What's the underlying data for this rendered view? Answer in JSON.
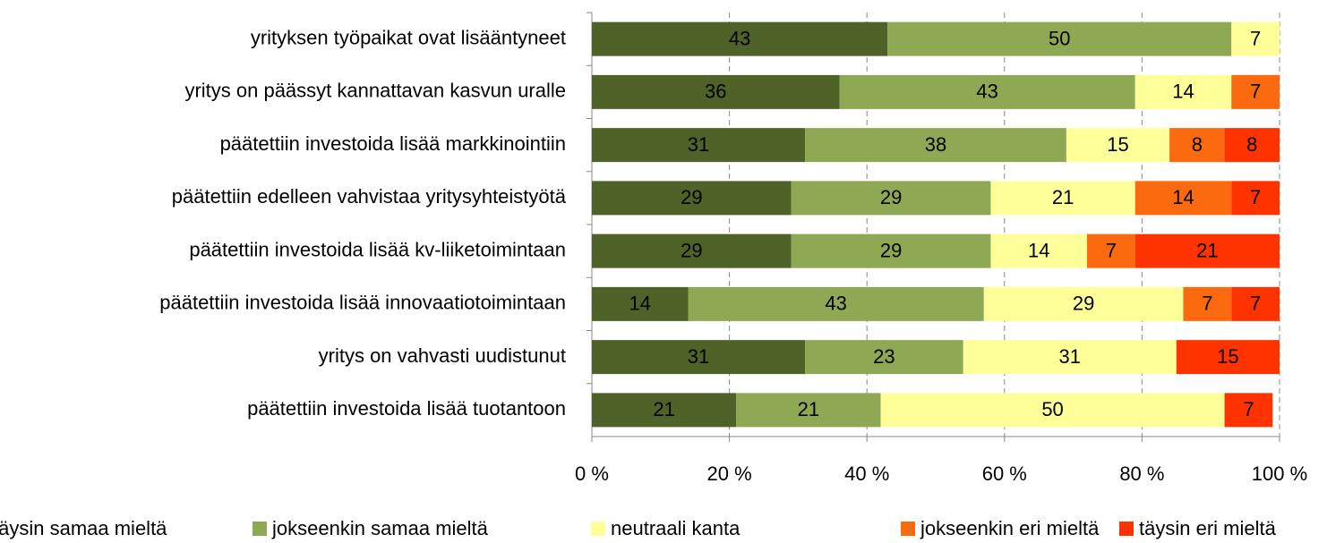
{
  "chart_data": {
    "type": "stacked-barh",
    "categories": [
      "yrityksen työpaikat ovat lisääntyneet",
      "yritys on päässyt kannattavan kasvun uralle",
      "päätettiin investoida lisää markkinointiin",
      "päätettiin edelleen vahvistaa yritysyhteistyötä",
      "päätettiin investoida lisää kv-liiketoimintaan",
      "päätettiin investoida lisää innovaatiotoimintaan",
      "yritys on vahvasti uudistunut",
      "päätettiin investoida lisää tuotantoon"
    ],
    "series": [
      {
        "name": "täysin samaa mieltä",
        "color": "#4f6228",
        "values": [
          43,
          36,
          31,
          29,
          29,
          14,
          31,
          21
        ]
      },
      {
        "name": "jokseenkin samaa mieltä",
        "color": "#8ea853",
        "values": [
          50,
          43,
          38,
          29,
          29,
          43,
          23,
          21
        ]
      },
      {
        "name": "neutraali kanta",
        "color": "#ffff99",
        "values": [
          7,
          14,
          15,
          21,
          14,
          29,
          31,
          50
        ]
      },
      {
        "name": "jokseenkin eri mieltä",
        "color": "#fb6a0f",
        "values": [
          null,
          7,
          8,
          14,
          7,
          7,
          null,
          null
        ]
      },
      {
        "name": "täysin eri mieltä",
        "color": "#ff3300",
        "values": [
          null,
          null,
          8,
          7,
          21,
          7,
          15,
          7
        ]
      }
    ],
    "xlim": [
      0,
      100
    ],
    "xticks": [
      {
        "value": 0,
        "label": "0 %"
      },
      {
        "value": 20,
        "label": "20 %"
      },
      {
        "value": 40,
        "label": "40 %"
      },
      {
        "value": 60,
        "label": "60 %"
      },
      {
        "value": 80,
        "label": "80 %"
      },
      {
        "value": 100,
        "label": "100 %"
      }
    ],
    "grid": true,
    "legend": "bottom"
  }
}
